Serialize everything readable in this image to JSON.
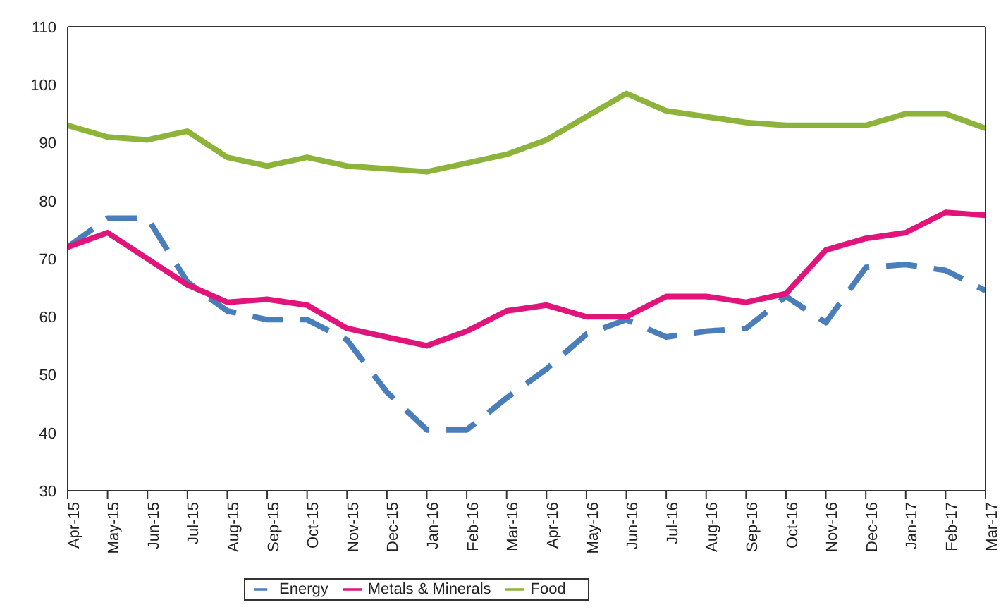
{
  "chart_data": {
    "type": "line",
    "categories": [
      "Apr-15",
      "May-15",
      "Jun-15",
      "Jul-15",
      "Aug-15",
      "Sep-15",
      "Oct-15",
      "Nov-15",
      "Dec-15",
      "Jan-16",
      "Feb-16",
      "Mar-16",
      "Apr-16",
      "May-16",
      "Jun-16",
      "Jul-16",
      "Aug-16",
      "Sep-16",
      "Oct-16",
      "Nov-16",
      "Dec-16",
      "Jan-17",
      "Feb-17",
      "Mar-17"
    ],
    "series": [
      {
        "name": "Energy",
        "color": "#4a7ebb",
        "line_style": "dashed",
        "values": [
          72,
          77,
          77,
          66,
          61,
          59.5,
          59.5,
          56,
          47,
          40.5,
          40.5,
          46,
          51,
          57,
          59.5,
          56.5,
          57.5,
          58,
          63.5,
          59,
          68.5,
          69,
          68,
          64.5
        ]
      },
      {
        "name": "Metals & Minerals",
        "color": "#e0147a",
        "line_style": "solid",
        "values": [
          72,
          74.5,
          70,
          65.5,
          62.5,
          63,
          62,
          58,
          56.5,
          55,
          57.5,
          61,
          62,
          60,
          60,
          63.5,
          63.5,
          62.5,
          64,
          71.5,
          73.5,
          74.5,
          78,
          77.5
        ]
      },
      {
        "name": "Food",
        "color": "#8db33a",
        "line_style": "solid",
        "values": [
          93,
          91,
          90.5,
          92,
          87.5,
          86,
          87.5,
          86,
          85.5,
          85,
          86.5,
          88,
          90.5,
          94.5,
          98.5,
          95.5,
          94.5,
          93.5,
          93,
          93,
          93,
          95,
          95,
          92.5
        ]
      }
    ],
    "ylim": [
      30,
      110
    ],
    "yticks": [
      30,
      40,
      50,
      60,
      70,
      80,
      90,
      100,
      110
    ],
    "legend": "bottom",
    "marker": "none"
  }
}
